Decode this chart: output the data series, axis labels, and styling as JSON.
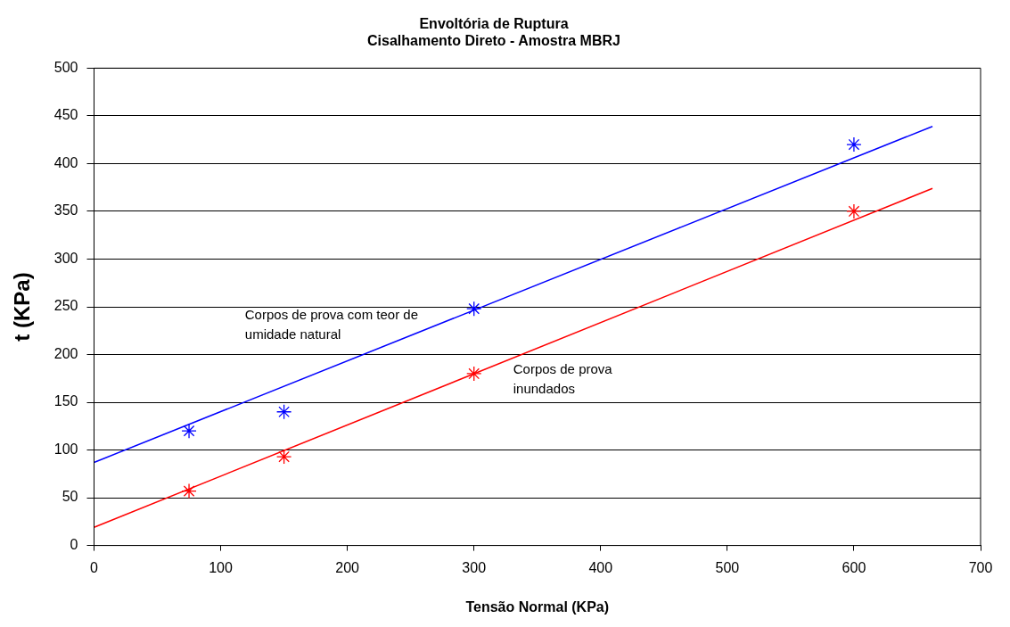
{
  "chart_data": {
    "type": "scatter",
    "title": "Envoltória de Ruptura\nCisalhamento Direto - Amostra MBRJ",
    "xlabel": "Tensão Normal (KPa)",
    "ylabel": "t (KPa)",
    "series": [
      {
        "type": "scatter",
        "color": "#0000ff",
        "x": [
          75,
          150,
          300,
          600
        ],
        "values": [
          120,
          140,
          248,
          420
        ],
        "marker": "cross"
      },
      {
        "type": "scatter",
        "color": "#ff0000",
        "x": [
          75,
          150,
          300,
          600
        ],
        "values": [
          57,
          93,
          180,
          350
        ],
        "marker": "cross"
      },
      {
        "type": "line",
        "name": "Corpos de prova com teor de umidade natural",
        "color": "#0000ff",
        "x": [
          0,
          662
        ],
        "values": [
          87,
          439
        ],
        "marker": "none"
      },
      {
        "type": "line",
        "name": "Corpos de prova inundados",
        "color": "#ff0000",
        "x": [
          0,
          662
        ],
        "values": [
          19,
          374
        ],
        "marker": "none"
      }
    ],
    "xlim": [
      0,
      700
    ],
    "xticks": [
      0,
      100,
      200,
      300,
      400,
      500,
      600,
      700
    ],
    "ylim": [
      0,
      500
    ],
    "yticks": [
      0,
      50,
      100,
      150,
      200,
      250,
      300,
      350,
      400,
      450,
      500
    ],
    "grid": "y",
    "legend": false
  }
}
